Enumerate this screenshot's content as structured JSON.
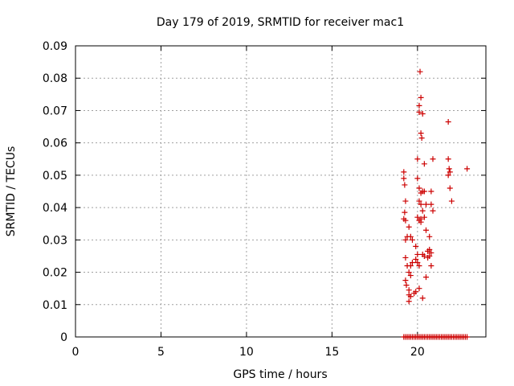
{
  "chart_data": {
    "type": "scatter",
    "title": "Day 179 of 2019, SRMTID for receiver mac1",
    "xlabel": "GPS time / hours",
    "ylabel": "SRMTID / TECUs",
    "xlim": [
      0,
      24
    ],
    "ylim": [
      0,
      0.09
    ],
    "xticks": [
      0,
      5,
      10,
      15,
      20
    ],
    "xtick_labels": [
      "0",
      "5",
      "10",
      "15",
      "20"
    ],
    "yticks": [
      0,
      0.01,
      0.02,
      0.03,
      0.04,
      0.05,
      0.06,
      0.07,
      0.08,
      0.09
    ],
    "ytick_labels": [
      "0",
      "0.01",
      "0.02",
      "0.03",
      "0.04",
      "0.05",
      "0.06",
      "0.07",
      "0.08",
      "0.09"
    ],
    "grid": true,
    "marker": "plus",
    "series": [
      {
        "name": "mac1",
        "color": "#cc0000",
        "points": [
          [
            19.2,
            0.051
          ],
          [
            19.2,
            0.049
          ],
          [
            19.25,
            0.047
          ],
          [
            19.3,
            0.042
          ],
          [
            19.25,
            0.0385
          ],
          [
            19.2,
            0.0365
          ],
          [
            19.3,
            0.036
          ],
          [
            19.5,
            0.034
          ],
          [
            19.3,
            0.03
          ],
          [
            19.4,
            0.031
          ],
          [
            19.6,
            0.031
          ],
          [
            19.3,
            0.0245
          ],
          [
            19.4,
            0.022
          ],
          [
            19.6,
            0.022
          ],
          [
            19.7,
            0.023
          ],
          [
            19.5,
            0.02
          ],
          [
            19.6,
            0.019
          ],
          [
            19.3,
            0.0175
          ],
          [
            19.35,
            0.016
          ],
          [
            19.5,
            0.0145
          ],
          [
            19.5,
            0.013
          ],
          [
            19.6,
            0.0125
          ],
          [
            19.5,
            0.011
          ],
          [
            19.8,
            0.0135
          ],
          [
            19.9,
            0.014
          ],
          [
            19.7,
            0.03
          ],
          [
            19.9,
            0.028
          ],
          [
            20.0,
            0.0255
          ],
          [
            19.9,
            0.024
          ],
          [
            20.0,
            0.023
          ],
          [
            20.1,
            0.022
          ],
          [
            20.0,
            0.037
          ],
          [
            20.1,
            0.036
          ],
          [
            20.0,
            0.049
          ],
          [
            20.1,
            0.046
          ],
          [
            20.1,
            0.042
          ],
          [
            20.2,
            0.041
          ],
          [
            20.2,
            0.0445
          ],
          [
            20.3,
            0.045
          ],
          [
            20.2,
            0.0365
          ],
          [
            20.2,
            0.0355
          ],
          [
            20.3,
            0.039
          ],
          [
            20.0,
            0.055
          ],
          [
            20.1,
            0.0715
          ],
          [
            20.1,
            0.0695
          ],
          [
            20.15,
            0.082
          ],
          [
            20.2,
            0.074
          ],
          [
            20.3,
            0.069
          ],
          [
            20.2,
            0.063
          ],
          [
            20.25,
            0.0615
          ],
          [
            20.4,
            0.0535
          ],
          [
            20.4,
            0.045
          ],
          [
            20.5,
            0.041
          ],
          [
            20.4,
            0.037
          ],
          [
            20.5,
            0.033
          ],
          [
            20.3,
            0.0255
          ],
          [
            20.4,
            0.025
          ],
          [
            20.6,
            0.0245
          ],
          [
            20.6,
            0.0265
          ],
          [
            20.7,
            0.027
          ],
          [
            20.7,
            0.025
          ],
          [
            20.8,
            0.026
          ],
          [
            20.7,
            0.031
          ],
          [
            20.8,
            0.022
          ],
          [
            20.5,
            0.0185
          ],
          [
            20.3,
            0.012
          ],
          [
            20.1,
            0.015
          ],
          [
            20.8,
            0.041
          ],
          [
            20.9,
            0.039
          ],
          [
            20.8,
            0.045
          ],
          [
            20.9,
            0.055
          ],
          [
            21.8,
            0.0665
          ],
          [
            21.8,
            0.055
          ],
          [
            21.85,
            0.052
          ],
          [
            21.9,
            0.051
          ],
          [
            21.8,
            0.05
          ],
          [
            21.9,
            0.046
          ],
          [
            22.0,
            0.042
          ],
          [
            22.9,
            0.052
          ],
          [
            19.2,
            0.0
          ],
          [
            19.3,
            0.0
          ],
          [
            19.4,
            0.0
          ],
          [
            19.5,
            0.0
          ],
          [
            19.6,
            0.0
          ],
          [
            19.7,
            0.0
          ],
          [
            19.8,
            0.0
          ],
          [
            19.9,
            0.0
          ],
          [
            20.0,
            0.0
          ],
          [
            20.1,
            0.0
          ],
          [
            20.2,
            0.0
          ],
          [
            20.3,
            0.0
          ],
          [
            20.4,
            0.0
          ],
          [
            20.5,
            0.0
          ],
          [
            20.6,
            0.0
          ],
          [
            20.7,
            0.0
          ],
          [
            20.8,
            0.0
          ],
          [
            20.9,
            0.0
          ],
          [
            21.0,
            0.0
          ],
          [
            21.1,
            0.0
          ],
          [
            21.2,
            0.0
          ],
          [
            21.3,
            0.0
          ],
          [
            21.4,
            0.0
          ],
          [
            21.5,
            0.0
          ],
          [
            21.6,
            0.0
          ],
          [
            21.7,
            0.0
          ],
          [
            21.8,
            0.0
          ],
          [
            21.9,
            0.0
          ],
          [
            22.0,
            0.0
          ],
          [
            22.1,
            0.0
          ],
          [
            22.2,
            0.0
          ],
          [
            22.3,
            0.0
          ],
          [
            22.4,
            0.0
          ],
          [
            22.5,
            0.0
          ],
          [
            22.6,
            0.0
          ],
          [
            22.7,
            0.0
          ],
          [
            22.8,
            0.0
          ],
          [
            22.9,
            0.0
          ]
        ]
      }
    ]
  }
}
